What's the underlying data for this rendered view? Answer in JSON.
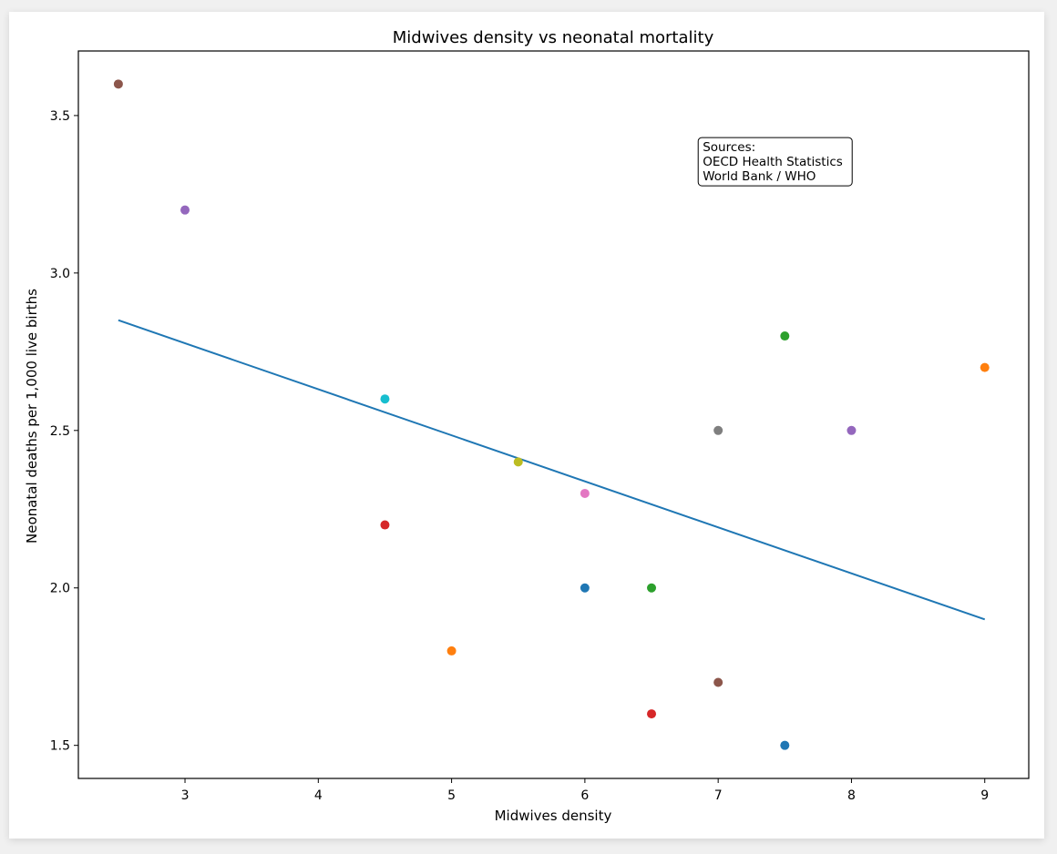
{
  "chart_data": {
    "type": "scatter",
    "title": "Midwives density vs neonatal mortality",
    "xlabel": "Midwives density",
    "ylabel": "Neonatal deaths per 1,000 live births",
    "xlim": [
      2.2,
      9.33
    ],
    "ylim": [
      1.395,
      3.705
    ],
    "xticks": [
      3,
      4,
      5,
      6,
      7,
      8,
      9
    ],
    "yticks": [
      1.5,
      2.0,
      2.5,
      3.0,
      3.5
    ],
    "xtick_labels": [
      "3",
      "4",
      "5",
      "6",
      "7",
      "8",
      "9"
    ],
    "ytick_labels": [
      "1.5",
      "2.0",
      "2.5",
      "3.0",
      "3.5"
    ],
    "grid": false,
    "points": [
      {
        "x": 6.0,
        "y": 2.0,
        "color": "#1f77b4"
      },
      {
        "x": 5.0,
        "y": 1.8,
        "color": "#ff7f0e"
      },
      {
        "x": 6.5,
        "y": 2.0,
        "color": "#2ca02c"
      },
      {
        "x": 4.5,
        "y": 2.2,
        "color": "#d62728"
      },
      {
        "x": 3.0,
        "y": 3.2,
        "color": "#9467bd"
      },
      {
        "x": 7.0,
        "y": 1.7,
        "color": "#8c564b"
      },
      {
        "x": 6.0,
        "y": 2.3,
        "color": "#e377c2"
      },
      {
        "x": 7.0,
        "y": 2.5,
        "color": "#7f7f7f"
      },
      {
        "x": 5.5,
        "y": 2.4,
        "color": "#bcbd22"
      },
      {
        "x": 4.5,
        "y": 2.6,
        "color": "#17becf"
      },
      {
        "x": 7.5,
        "y": 1.5,
        "color": "#1f77b4"
      },
      {
        "x": 9.0,
        "y": 2.7,
        "color": "#ff7f0e"
      },
      {
        "x": 7.5,
        "y": 2.8,
        "color": "#2ca02c"
      },
      {
        "x": 6.5,
        "y": 1.6,
        "color": "#d62728"
      },
      {
        "x": 8.0,
        "y": 2.5,
        "color": "#9467bd"
      },
      {
        "x": 2.5,
        "y": 3.6,
        "color": "#8c564b"
      }
    ],
    "trendline": {
      "x": [
        2.5,
        9.0
      ],
      "y": [
        2.85,
        1.9
      ],
      "color": "#1f77b4"
    },
    "annotation": {
      "lines": [
        "Sources:",
        "OECD Health Statistics",
        "World Bank / WHO"
      ],
      "x": 6.85,
      "y": 3.43
    }
  }
}
